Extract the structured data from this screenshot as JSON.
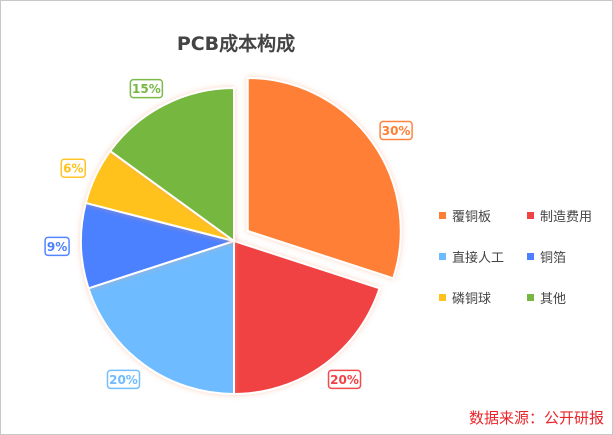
{
  "chart_data": {
    "type": "pie",
    "title": "PCB成本构成",
    "categories": [
      "覆铜板",
      "制造费用",
      "直接人工",
      "铜箔",
      "磷铜球",
      "其他"
    ],
    "values": [
      30,
      20,
      20,
      9,
      6,
      15
    ],
    "labels": [
      "30%",
      "20%",
      "20%",
      "9%",
      "6%",
      "15%"
    ],
    "colors": [
      "#fe7f34",
      "#f04343",
      "#6ebbff",
      "#4c80ff",
      "#ffc21c",
      "#76b741"
    ],
    "exploded": "覆铜板",
    "legend_position": "right"
  },
  "source": "数据来源：公开研报"
}
